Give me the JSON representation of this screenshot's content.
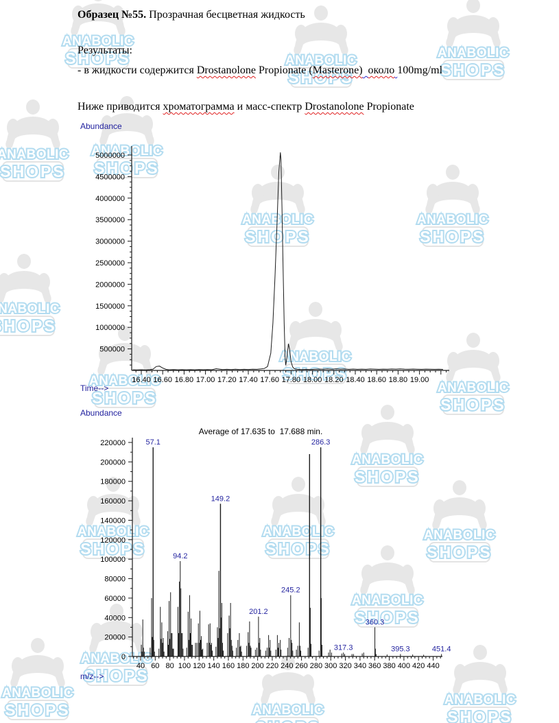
{
  "document": {
    "sample_title_bold": "Образец №55.",
    "sample_title_rest": " Прозрачная бесцветная жидкость",
    "results_label": "Результаты:",
    "result_line_segments": [
      {
        "text": "- в жидкости содержится ",
        "underline": "none"
      },
      {
        "text": "Drostanolone",
        "underline": "red"
      },
      {
        "text": " Propionate (",
        "underline": "none"
      },
      {
        "text": "Masterone)",
        "underline": "red"
      },
      {
        "text": "  ",
        "underline": "blue"
      },
      {
        "text": "около",
        "underline": "red"
      },
      {
        "text": " ",
        "underline": "blue"
      },
      {
        "text": "100mg/ml",
        "underline": "none"
      }
    ],
    "note_line_segments": [
      {
        "text": "Ниже приводится ",
        "underline": "none"
      },
      {
        "text": "хроматограмма",
        "underline": "red"
      },
      {
        "text": " и масс-спектр ",
        "underline": "none"
      },
      {
        "text": "Drostanolone",
        "underline": "red"
      },
      {
        "text": " Propionate",
        "underline": "none"
      }
    ]
  },
  "watermark": {
    "line1": "ANABOLIC",
    "line2": "SHOPS"
  },
  "colors": {
    "label_blue": "#20209e",
    "peak_label_blue": "#2525a0",
    "trace_black": "#1a1a1a",
    "red_squiggle": "#e02020",
    "blue_squiggle": "#2b2bd0",
    "watermark_outline": "#b3dcf0",
    "watermark_gray": "#e7e7e7"
  },
  "chart_data": [
    {
      "type": "line",
      "name": "total-ion-chromatogram",
      "title": "",
      "ylabel": "Abundance",
      "xlabel": "Time-->",
      "xlim": [
        16.31,
        19.25
      ],
      "ylim": [
        0,
        5250000
      ],
      "y_label_min": 500000,
      "y_label_max": 5000000,
      "y_major_step": 500000,
      "y_minor_step": 125000,
      "x_label_min": 16.4,
      "x_label_max": 19.0,
      "x_major_step": 0.2,
      "x_minor_step": 0.05,
      "grid": false,
      "points": [
        [
          16.32,
          15000
        ],
        [
          16.36,
          12000
        ],
        [
          16.4,
          16000
        ],
        [
          16.44,
          12000
        ],
        [
          16.48,
          18000
        ],
        [
          16.51,
          30000
        ],
        [
          16.54,
          90000
        ],
        [
          16.57,
          100000
        ],
        [
          16.6,
          55000
        ],
        [
          16.63,
          25000
        ],
        [
          16.66,
          15000
        ],
        [
          16.7,
          20000
        ],
        [
          16.74,
          14000
        ],
        [
          16.78,
          18000
        ],
        [
          16.82,
          15000
        ],
        [
          16.86,
          18000
        ],
        [
          16.9,
          15000
        ],
        [
          16.94,
          20000
        ],
        [
          16.98,
          16000
        ],
        [
          17.02,
          20000
        ],
        [
          17.06,
          16000
        ],
        [
          17.1,
          40000
        ],
        [
          17.13,
          30000
        ],
        [
          17.16,
          20000
        ],
        [
          17.2,
          25000
        ],
        [
          17.24,
          20000
        ],
        [
          17.28,
          28000
        ],
        [
          17.32,
          20000
        ],
        [
          17.36,
          25000
        ],
        [
          17.4,
          22000
        ],
        [
          17.44,
          28000
        ],
        [
          17.48,
          25000
        ],
        [
          17.52,
          35000
        ],
        [
          17.55,
          45000
        ],
        [
          17.58,
          90000
        ],
        [
          17.61,
          400000
        ],
        [
          17.63,
          1100000
        ],
        [
          17.65,
          2200000
        ],
        [
          17.67,
          3500000
        ],
        [
          17.685,
          4600000
        ],
        [
          17.7,
          5060000
        ],
        [
          17.705,
          4900000
        ],
        [
          17.715,
          3800000
        ],
        [
          17.725,
          2400000
        ],
        [
          17.735,
          1100000
        ],
        [
          17.745,
          250000
        ],
        [
          17.75,
          120000
        ],
        [
          17.76,
          280000
        ],
        [
          17.775,
          620000
        ],
        [
          17.785,
          500000
        ],
        [
          17.8,
          200000
        ],
        [
          17.815,
          80000
        ],
        [
          17.83,
          40000
        ],
        [
          17.86,
          25000
        ],
        [
          17.9,
          20000
        ],
        [
          17.94,
          25000
        ],
        [
          17.98,
          20000
        ],
        [
          18.02,
          28000
        ],
        [
          18.06,
          32000
        ],
        [
          18.1,
          28000
        ],
        [
          18.14,
          35000
        ],
        [
          18.18,
          28000
        ],
        [
          18.22,
          38000
        ],
        [
          18.26,
          30000
        ],
        [
          18.3,
          34000
        ],
        [
          18.34,
          26000
        ],
        [
          18.38,
          32000
        ],
        [
          18.42,
          25000
        ],
        [
          18.46,
          30000
        ],
        [
          18.5,
          26000
        ],
        [
          18.54,
          34000
        ],
        [
          18.58,
          30000
        ],
        [
          18.62,
          26000
        ],
        [
          18.66,
          30000
        ],
        [
          18.7,
          27000
        ],
        [
          18.74,
          33000
        ],
        [
          18.78,
          30000
        ],
        [
          18.82,
          36000
        ],
        [
          18.86,
          30000
        ],
        [
          18.9,
          28000
        ],
        [
          18.94,
          32000
        ],
        [
          18.98,
          28000
        ],
        [
          19.02,
          26000
        ],
        [
          19.06,
          30000
        ],
        [
          19.1,
          28000
        ],
        [
          19.14,
          26000
        ],
        [
          19.18,
          28000
        ],
        [
          19.22,
          24000
        ]
      ]
    },
    {
      "type": "stick",
      "name": "mass-spectrum",
      "title": "Average of 17.635 to  17.688 min.",
      "ylabel": "Abundance",
      "xlabel": "m/z-->",
      "xlim": [
        29,
        448
      ],
      "ylim": [
        0,
        220000
      ],
      "y_label_min": 0,
      "y_label_max": 220000,
      "y_major_step": 20000,
      "y_minor_step": 10000,
      "x_label_min": 40,
      "x_label_max": 440,
      "x_major_step": 20,
      "x_minor_step": 5,
      "grid": false,
      "peaks": [
        [
          41,
          12000
        ],
        [
          42,
          5000
        ],
        [
          43,
          38000
        ],
        [
          44,
          9000
        ],
        [
          45,
          5000
        ],
        [
          53,
          9000
        ],
        [
          55,
          60000
        ],
        [
          56,
          20000
        ],
        [
          57.1,
          215000
        ],
        [
          58,
          17000
        ],
        [
          59,
          5000
        ],
        [
          65,
          8000
        ],
        [
          67,
          51000
        ],
        [
          68,
          18000
        ],
        [
          69,
          35000
        ],
        [
          70,
          14000
        ],
        [
          71,
          19000
        ],
        [
          72,
          5000
        ],
        [
          77,
          26000
        ],
        [
          78,
          12000
        ],
        [
          79,
          57000
        ],
        [
          80,
          18000
        ],
        [
          81,
          66000
        ],
        [
          82,
          24000
        ],
        [
          83,
          24000
        ],
        [
          84,
          8000
        ],
        [
          85,
          8000
        ],
        [
          91,
          51000
        ],
        [
          92,
          24000
        ],
        [
          93,
          77000
        ],
        [
          94.2,
          98000
        ],
        [
          95,
          70000
        ],
        [
          96,
          24000
        ],
        [
          97,
          24000
        ],
        [
          98,
          8000
        ],
        [
          103,
          9000
        ],
        [
          105,
          46000
        ],
        [
          106,
          17000
        ],
        [
          107,
          63000
        ],
        [
          108,
          24000
        ],
        [
          109,
          39000
        ],
        [
          110,
          12000
        ],
        [
          111,
          12000
        ],
        [
          115,
          14000
        ],
        [
          117,
          14000
        ],
        [
          119,
          34000
        ],
        [
          120,
          14000
        ],
        [
          121,
          47000
        ],
        [
          122,
          17000
        ],
        [
          123,
          21000
        ],
        [
          124,
          7000
        ],
        [
          125,
          8000
        ],
        [
          131,
          14000
        ],
        [
          133,
          33000
        ],
        [
          134,
          14000
        ],
        [
          135,
          34000
        ],
        [
          136,
          12000
        ],
        [
          137,
          14000
        ],
        [
          138,
          6000
        ],
        [
          143,
          10000
        ],
        [
          145,
          30000
        ],
        [
          146,
          19000
        ],
        [
          147,
          88000
        ],
        [
          148,
          29000
        ],
        [
          149.2,
          157000
        ],
        [
          150,
          40000
        ],
        [
          151,
          55000
        ],
        [
          152,
          14000
        ],
        [
          153,
          6000
        ],
        [
          159,
          24000
        ],
        [
          161,
          42000
        ],
        [
          162,
          29000
        ],
        [
          163,
          55000
        ],
        [
          164,
          17000
        ],
        [
          165,
          11000
        ],
        [
          166,
          6000
        ],
        [
          171,
          9000
        ],
        [
          173,
          17000
        ],
        [
          175,
          24000
        ],
        [
          176,
          10000
        ],
        [
          177,
          11000
        ],
        [
          178,
          5000
        ],
        [
          185,
          11000
        ],
        [
          187,
          25000
        ],
        [
          188,
          14000
        ],
        [
          189,
          36000
        ],
        [
          190,
          11000
        ],
        [
          191,
          9000
        ],
        [
          197,
          7000
        ],
        [
          199,
          9000
        ],
        [
          201.2,
          41000
        ],
        [
          202,
          14000
        ],
        [
          203,
          19000
        ],
        [
          204,
          7000
        ],
        [
          211,
          6000
        ],
        [
          213,
          9000
        ],
        [
          215,
          22000
        ],
        [
          216,
          9000
        ],
        [
          217,
          17000
        ],
        [
          218,
          6000
        ],
        [
          225,
          7000
        ],
        [
          227,
          22000
        ],
        [
          228,
          9000
        ],
        [
          229,
          14000
        ],
        [
          231,
          17000
        ],
        [
          232,
          7000
        ],
        [
          241,
          9000
        ],
        [
          243,
          19000
        ],
        [
          245.2,
          63000
        ],
        [
          246,
          17000
        ],
        [
          247,
          14000
        ],
        [
          248,
          6000
        ],
        [
          253,
          7000
        ],
        [
          255,
          11000
        ],
        [
          257,
          35000
        ],
        [
          258,
          11000
        ],
        [
          259,
          6000
        ],
        [
          269,
          9000
        ],
        [
          271,
          208000
        ],
        [
          272,
          50000
        ],
        [
          273,
          13000
        ],
        [
          284,
          6000
        ],
        [
          286.3,
          215000
        ],
        [
          287,
          60000
        ],
        [
          288,
          12000
        ],
        [
          297,
          4000
        ],
        [
          299,
          7000
        ],
        [
          301,
          4000
        ],
        [
          315,
          3000
        ],
        [
          317.3,
          4000
        ],
        [
          319,
          2500
        ],
        [
          329,
          2500
        ],
        [
          331,
          2500
        ],
        [
          343,
          3000
        ],
        [
          345,
          4000
        ],
        [
          360.3,
          30000
        ],
        [
          361,
          8000
        ],
        [
          362,
          2500
        ],
        [
          377,
          2000
        ],
        [
          395.3,
          2500
        ],
        [
          412,
          2000
        ],
        [
          427,
          1800
        ],
        [
          451.4,
          2500
        ]
      ],
      "labeled_peaks": [
        {
          "label": "57.1",
          "mz": 57.1,
          "value": 215000
        },
        {
          "label": "94.2",
          "mz": 94.2,
          "value": 98000
        },
        {
          "label": "149.2",
          "mz": 149.2,
          "value": 157000
        },
        {
          "label": "201.2",
          "mz": 201.2,
          "value": 41000
        },
        {
          "label": "245.2",
          "mz": 245.2,
          "value": 63000
        },
        {
          "label": "286.3",
          "mz": 286.3,
          "value": 215000
        },
        {
          "label": "317.3",
          "mz": 317.3,
          "value": 4000
        },
        {
          "label": "360.3",
          "mz": 360.3,
          "value": 30000
        },
        {
          "label": "395.3",
          "mz": 395.3,
          "value": 2500
        },
        {
          "label": "451.4",
          "mz": 451.4,
          "value": 2500
        }
      ]
    }
  ]
}
